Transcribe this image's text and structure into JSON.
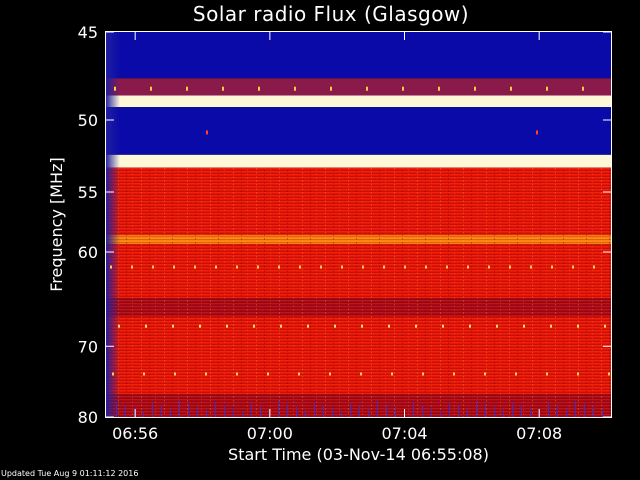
{
  "chart_data": {
    "type": "heatmap",
    "title": "Solar radio Flux (Glasgow)",
    "xlabel": "Start Time (03-Nov-14 06:55:08)",
    "ylabel": "Frequency [MHz]",
    "x_tick_labels": [
      "06:56",
      "07:00",
      "07:04",
      "07:08"
    ],
    "x_ticks": [
      "06:56",
      "07:00",
      "07:04",
      "07:08"
    ],
    "xlim": [
      "06:55:08",
      "07:10:08"
    ],
    "y_tick_labels": [
      "45",
      "50",
      "55",
      "60",
      "70",
      "80"
    ],
    "y_ticks": [
      45,
      50,
      55,
      60,
      70,
      80
    ],
    "ylim": [
      45,
      80
    ],
    "y_scale": "reciprocal",
    "colormap": [
      "#0000aa",
      "#6060ff",
      "#aa0000",
      "#ff2200",
      "#ff9900",
      "#ffffcc"
    ],
    "frequency_bands": [
      {
        "from": 45,
        "to": 47.5,
        "level": "low"
      },
      {
        "from": 47.5,
        "to": 48.5,
        "level": "medium-low"
      },
      {
        "from": 48.5,
        "to": 49.2,
        "level": "very-high"
      },
      {
        "from": 49.2,
        "to": 52.3,
        "level": "low"
      },
      {
        "from": 52.3,
        "to": 53.2,
        "level": "very-high"
      },
      {
        "from": 53.2,
        "to": 58.5,
        "level": "medium-high"
      },
      {
        "from": 58.5,
        "to": 59.3,
        "level": "high"
      },
      {
        "from": 59.3,
        "to": 64.5,
        "level": "medium-high"
      },
      {
        "from": 64.5,
        "to": 66.5,
        "level": "medium"
      },
      {
        "from": 66.5,
        "to": 76.5,
        "level": "medium-high"
      },
      {
        "from": 76.5,
        "to": 80,
        "level": "medium"
      }
    ]
  },
  "footer": {
    "updated": "Updated Tue Aug  9 01:11:12 2016"
  }
}
